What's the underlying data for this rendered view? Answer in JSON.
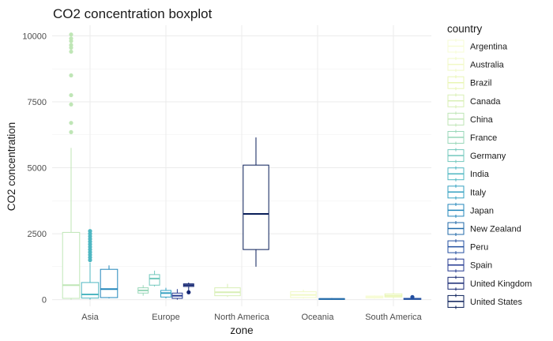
{
  "chart_data": {
    "type": "boxplot",
    "title": "CO2 concentration boxplot",
    "xlabel": "zone",
    "ylabel": "CO2 concentration",
    "ylim": [
      -250,
      10400
    ],
    "y_ticks": [
      0,
      2500,
      5000,
      7500,
      10000
    ],
    "y_tick_labels": [
      "0",
      "2500",
      "5000",
      "7500",
      "10000"
    ],
    "grid": true,
    "legend_title": "country",
    "legend_position": "right",
    "categories": [
      "Asia",
      "Europe",
      "North America",
      "Oceania",
      "South America"
    ],
    "series": [
      {
        "name": "Argentina",
        "color": "#f7fcd6"
      },
      {
        "name": "Australia",
        "color": "#f1f9c6"
      },
      {
        "name": "Brazil",
        "color": "#e9f6b5"
      },
      {
        "name": "Canada",
        "color": "#d8efb6"
      },
      {
        "name": "China",
        "color": "#bfe6b6"
      },
      {
        "name": "France",
        "color": "#99d7b9"
      },
      {
        "name": "Germany",
        "color": "#73c8bd"
      },
      {
        "name": "India",
        "color": "#4fb7c2"
      },
      {
        "name": "Italy",
        "color": "#36a2c2"
      },
      {
        "name": "Japan",
        "color": "#2387bb"
      },
      {
        "name": "New Zealand",
        "color": "#216aa9"
      },
      {
        "name": "Peru",
        "color": "#234fa0"
      },
      {
        "name": "Spain",
        "color": "#233890"
      },
      {
        "name": "United Kingdom",
        "color": "#142672"
      },
      {
        "name": "United States",
        "color": "#081d58"
      }
    ],
    "boxes": [
      {
        "zone": "Asia",
        "country": "China",
        "min": 0,
        "q1": 50,
        "median": 550,
        "q3": 2550,
        "max": 5750,
        "outliers": [
          6350,
          6700,
          7400,
          7750,
          8500,
          9400,
          9550,
          9650,
          9800,
          9900,
          10050
        ]
      },
      {
        "zone": "Asia",
        "country": "India",
        "min": 0,
        "q1": 60,
        "median": 200,
        "q3": 650,
        "max": 1400,
        "outliers": [
          1500,
          1600,
          1700,
          1800,
          1900,
          2000,
          2100,
          2200,
          2300,
          2400,
          2500,
          2600
        ]
      },
      {
        "zone": "Asia",
        "country": "Japan",
        "min": 50,
        "q1": 80,
        "median": 400,
        "q3": 1150,
        "max": 1300,
        "outliers": []
      },
      {
        "zone": "Europe",
        "country": "France",
        "min": 150,
        "q1": 250,
        "median": 350,
        "q3": 450,
        "max": 550,
        "outliers": []
      },
      {
        "zone": "Europe",
        "country": "Germany",
        "min": 500,
        "q1": 550,
        "median": 800,
        "q3": 950,
        "max": 1100,
        "outliers": []
      },
      {
        "zone": "Europe",
        "country": "Italy",
        "min": 50,
        "q1": 100,
        "median": 250,
        "q3": 350,
        "max": 450,
        "outliers": []
      },
      {
        "zone": "Europe",
        "country": "Spain",
        "min": 0,
        "q1": 50,
        "median": 150,
        "q3": 250,
        "max": 400,
        "outliers": []
      },
      {
        "zone": "Europe",
        "country": "United Kingdom",
        "min": 300,
        "q1": 500,
        "median": 550,
        "q3": 600,
        "max": 650,
        "outliers": [
          280
        ]
      },
      {
        "zone": "North America",
        "country": "Canada",
        "min": 100,
        "q1": 150,
        "median": 280,
        "q3": 450,
        "max": 600,
        "outliers": []
      },
      {
        "zone": "North America",
        "country": "United States",
        "min": 1250,
        "q1": 1900,
        "median": 3250,
        "q3": 5100,
        "max": 6150,
        "outliers": []
      },
      {
        "zone": "Oceania",
        "country": "Australia",
        "min": 50,
        "q1": 80,
        "median": 180,
        "q3": 300,
        "max": 380,
        "outliers": []
      },
      {
        "zone": "Oceania",
        "country": "New Zealand",
        "min": 0,
        "q1": 10,
        "median": 25,
        "q3": 40,
        "max": 60,
        "outliers": []
      },
      {
        "zone": "South America",
        "country": "Argentina",
        "min": 30,
        "q1": 60,
        "median": 100,
        "q3": 140,
        "max": 160,
        "outliers": []
      },
      {
        "zone": "South America",
        "country": "Brazil",
        "min": 60,
        "q1": 100,
        "median": 150,
        "q3": 220,
        "max": 260,
        "outliers": []
      },
      {
        "zone": "South America",
        "country": "Peru",
        "min": 0,
        "q1": 10,
        "median": 30,
        "q3": 50,
        "max": 70,
        "outliers": [
          100
        ]
      }
    ]
  }
}
